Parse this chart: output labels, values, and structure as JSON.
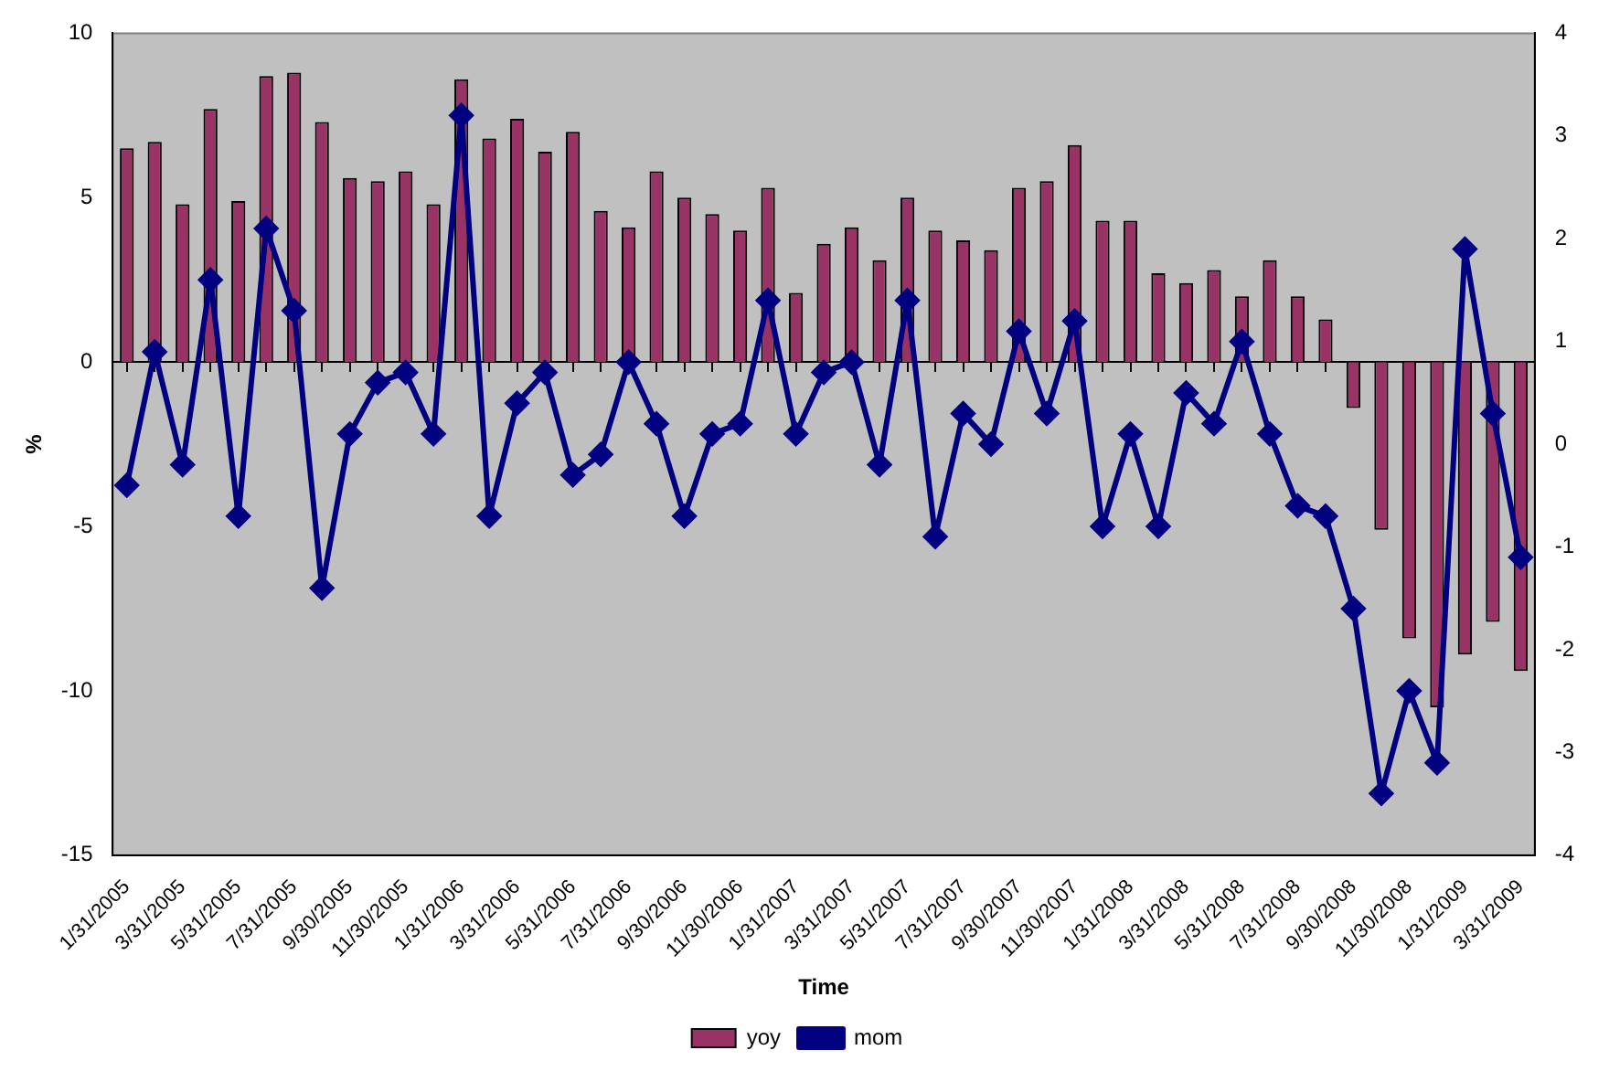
{
  "chart_data": {
    "type": "bar",
    "xlabel": "Time",
    "ylabel": "%",
    "categories": [
      "1/31/2005",
      null,
      "3/31/2005",
      null,
      "5/31/2005",
      null,
      "7/31/2005",
      null,
      "9/30/2005",
      null,
      "11/30/2005",
      null,
      "1/31/2006",
      null,
      "3/31/2006",
      null,
      "5/31/2006",
      null,
      "7/31/2006",
      null,
      "9/30/2006",
      null,
      "11/30/2006",
      null,
      "1/31/2007",
      null,
      "3/31/2007",
      null,
      "5/31/2007",
      null,
      "7/31/2007",
      null,
      "9/30/2007",
      null,
      "11/30/2007",
      null,
      "1/31/2008",
      null,
      "3/31/2008",
      null,
      "5/31/2008",
      null,
      "7/31/2008",
      null,
      "9/30/2008",
      null,
      "11/30/2008",
      null,
      "1/31/2009",
      null,
      "3/31/2009"
    ],
    "series": [
      {
        "name": "yoy",
        "type": "bar",
        "color": "#993366",
        "values": [
          6.5,
          6.7,
          4.8,
          7.7,
          4.9,
          8.7,
          8.8,
          7.3,
          5.6,
          5.5,
          5.8,
          4.8,
          8.6,
          6.8,
          7.4,
          6.4,
          7.0,
          4.6,
          4.1,
          5.8,
          5.0,
          4.5,
          4.0,
          5.3,
          2.1,
          3.6,
          4.1,
          3.1,
          5.0,
          4.0,
          3.7,
          3.4,
          5.3,
          5.5,
          6.6,
          4.3,
          4.3,
          2.7,
          2.4,
          2.8,
          2.0,
          3.1,
          2.0,
          1.3,
          -1.4,
          -5.1,
          -8.4,
          -10.5,
          -8.9,
          -7.9,
          -9.4
        ]
      },
      {
        "name": "mom",
        "type": "line",
        "axis": "y2",
        "color": "#000080",
        "marker": "diamond",
        "values": [
          -0.4,
          0.9,
          -0.2,
          1.6,
          -0.7,
          2.1,
          1.3,
          -1.4,
          0.1,
          0.6,
          0.7,
          0.1,
          3.2,
          -0.7,
          0.4,
          0.7,
          -0.3,
          -0.1,
          0.8,
          0.2,
          -0.7,
          0.1,
          0.2,
          1.4,
          0.1,
          0.7,
          0.8,
          -0.2,
          1.4,
          -0.9,
          0.3,
          0.0,
          1.1,
          0.3,
          1.2,
          -0.8,
          0.1,
          -0.8,
          0.5,
          0.2,
          1.0,
          0.1,
          -0.6,
          -0.7,
          -1.6,
          -3.4,
          -2.4,
          -3.1,
          1.9,
          0.3,
          -1.1
        ]
      }
    ],
    "ylim": [
      -15,
      10
    ],
    "yticks": [
      -15,
      -10,
      -5,
      0,
      5,
      10
    ],
    "y2lim": [
      -4,
      4
    ],
    "y2ticks": [
      -4,
      -3,
      -2,
      -1,
      0,
      1,
      2,
      3,
      4
    ],
    "legend": "bottom"
  }
}
